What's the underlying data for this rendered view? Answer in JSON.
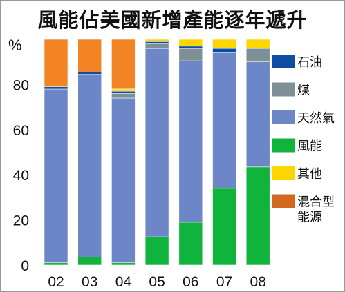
{
  "title": "風能佔美國新增產能逐年遞升",
  "chart_data": {
    "type": "bar",
    "stacked": true,
    "title": "風能佔美國新增產能逐年遞升",
    "unit_label": "%",
    "ylim": [
      0,
      100
    ],
    "yticks": [
      "0",
      "20",
      "40",
      "60",
      "80"
    ],
    "grid": false,
    "legend_position": "right",
    "categories": [
      "02",
      "03",
      "04",
      "05",
      "06",
      "07",
      "08"
    ],
    "series": [
      {
        "name": "風能",
        "color": "#10b43c",
        "values": [
          1,
          3.5,
          1,
          12.5,
          19,
          34,
          43.5
        ]
      },
      {
        "name": "天然氣",
        "color": "#6d86c7",
        "values": [
          77,
          81,
          73,
          83.5,
          71.5,
          60,
          46.5
        ]
      },
      {
        "name": "煤",
        "color": "#7e9096",
        "values": [
          0,
          0,
          2,
          2,
          5.5,
          0,
          6
        ]
      },
      {
        "name": "石油",
        "color": "#0b4ea2",
        "values": [
          1,
          1,
          1,
          1,
          1,
          2,
          0
        ]
      },
      {
        "name": "其他",
        "color": "#ffd500",
        "values": [
          0,
          0,
          1,
          1,
          3,
          4,
          4
        ]
      },
      {
        "name": "混合型能源",
        "color": "#f28424",
        "values": [
          21,
          14.5,
          22,
          0,
          0,
          0,
          0
        ]
      }
    ],
    "legend": [
      {
        "label": "石油",
        "color": "#0b4ea2"
      },
      {
        "label": "煤",
        "color": "#7e9096"
      },
      {
        "label": "天然氣",
        "color": "#6d86c7"
      },
      {
        "label": "風能",
        "color": "#10b43c"
      },
      {
        "label": "其他",
        "color": "#ffd500"
      },
      {
        "label_lines": [
          "混合型",
          "能源"
        ],
        "color": "#d2691e"
      }
    ]
  }
}
